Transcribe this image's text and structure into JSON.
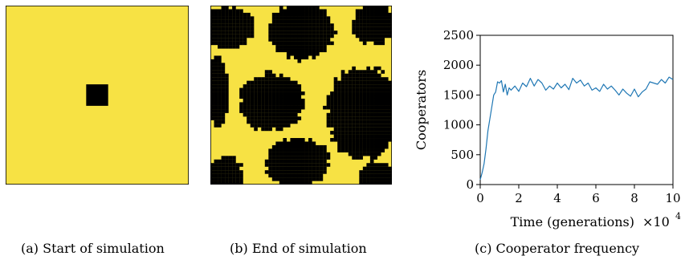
{
  "colors": {
    "cooperator": "#f7e244",
    "defector": "#000000",
    "line": "#1f77b4"
  },
  "panels": {
    "a": {
      "caption": "(a) Start of simulation",
      "grid_n": 50,
      "defector_block": {
        "row_start": 22,
        "row_end": 27,
        "col_start": 22,
        "col_end": 27
      }
    },
    "b": {
      "caption": "(b) End of simulation",
      "grid_n": 50,
      "clusters": [
        {
          "cx": 5,
          "cy": 6,
          "rx": 7,
          "ry": 6
        },
        {
          "cx": 25,
          "cy": 7,
          "rx": 9,
          "ry": 8
        },
        {
          "cx": 45,
          "cy": 5,
          "rx": 6,
          "ry": 6
        },
        {
          "cx": 2,
          "cy": 24,
          "rx": 3,
          "ry": 10
        },
        {
          "cx": 17,
          "cy": 27,
          "rx": 9,
          "ry": 8
        },
        {
          "cx": 42,
          "cy": 30,
          "rx": 10,
          "ry": 13
        },
        {
          "cx": 4,
          "cy": 47,
          "rx": 5,
          "ry": 5
        },
        {
          "cx": 24,
          "cy": 44,
          "rx": 9,
          "ry": 7
        },
        {
          "cx": 46,
          "cy": 48,
          "rx": 5,
          "ry": 4
        }
      ]
    },
    "c": {
      "caption": "(c) Cooperator frequency"
    }
  },
  "chart_data": {
    "type": "line",
    "title": "",
    "xlabel": "Time (generations)",
    "x_multiplier": "×10",
    "x_multiplier_exp": "4",
    "ylabel": "Cooperators",
    "xlim": [
      0,
      10
    ],
    "ylim": [
      0,
      2500
    ],
    "xticks": [
      0,
      2,
      4,
      6,
      8,
      10
    ],
    "yticks": [
      0,
      500,
      1000,
      1500,
      2000,
      2500
    ],
    "series": [
      {
        "x": [
          0,
          0.1,
          0.2,
          0.3,
          0.4,
          0.5,
          0.6,
          0.7,
          0.8,
          0.9,
          1.0,
          1.1,
          1.2,
          1.3,
          1.4,
          1.5,
          1.6,
          1.8,
          2.0,
          2.2,
          2.4,
          2.6,
          2.8,
          3.0,
          3.2,
          3.4,
          3.6,
          3.8,
          4.0,
          4.2,
          4.4,
          4.6,
          4.8,
          5.0,
          5.2,
          5.4,
          5.6,
          5.8,
          6.0,
          6.2,
          6.4,
          6.6,
          6.8,
          7.0,
          7.2,
          7.4,
          7.6,
          7.8,
          8.0,
          8.2,
          8.4,
          8.6,
          8.8,
          9.0,
          9.2,
          9.4,
          9.6,
          9.8,
          10.0
        ],
        "values": [
          80,
          200,
          350,
          600,
          900,
          1100,
          1300,
          1500,
          1550,
          1720,
          1700,
          1740,
          1550,
          1680,
          1500,
          1620,
          1580,
          1650,
          1560,
          1700,
          1640,
          1780,
          1650,
          1760,
          1700,
          1580,
          1650,
          1600,
          1700,
          1620,
          1680,
          1590,
          1780,
          1700,
          1750,
          1650,
          1700,
          1580,
          1620,
          1560,
          1680,
          1600,
          1650,
          1580,
          1500,
          1600,
          1530,
          1480,
          1600,
          1470,
          1550,
          1600,
          1720,
          1700,
          1680,
          1760,
          1700,
          1800,
          1760
        ]
      }
    ]
  }
}
